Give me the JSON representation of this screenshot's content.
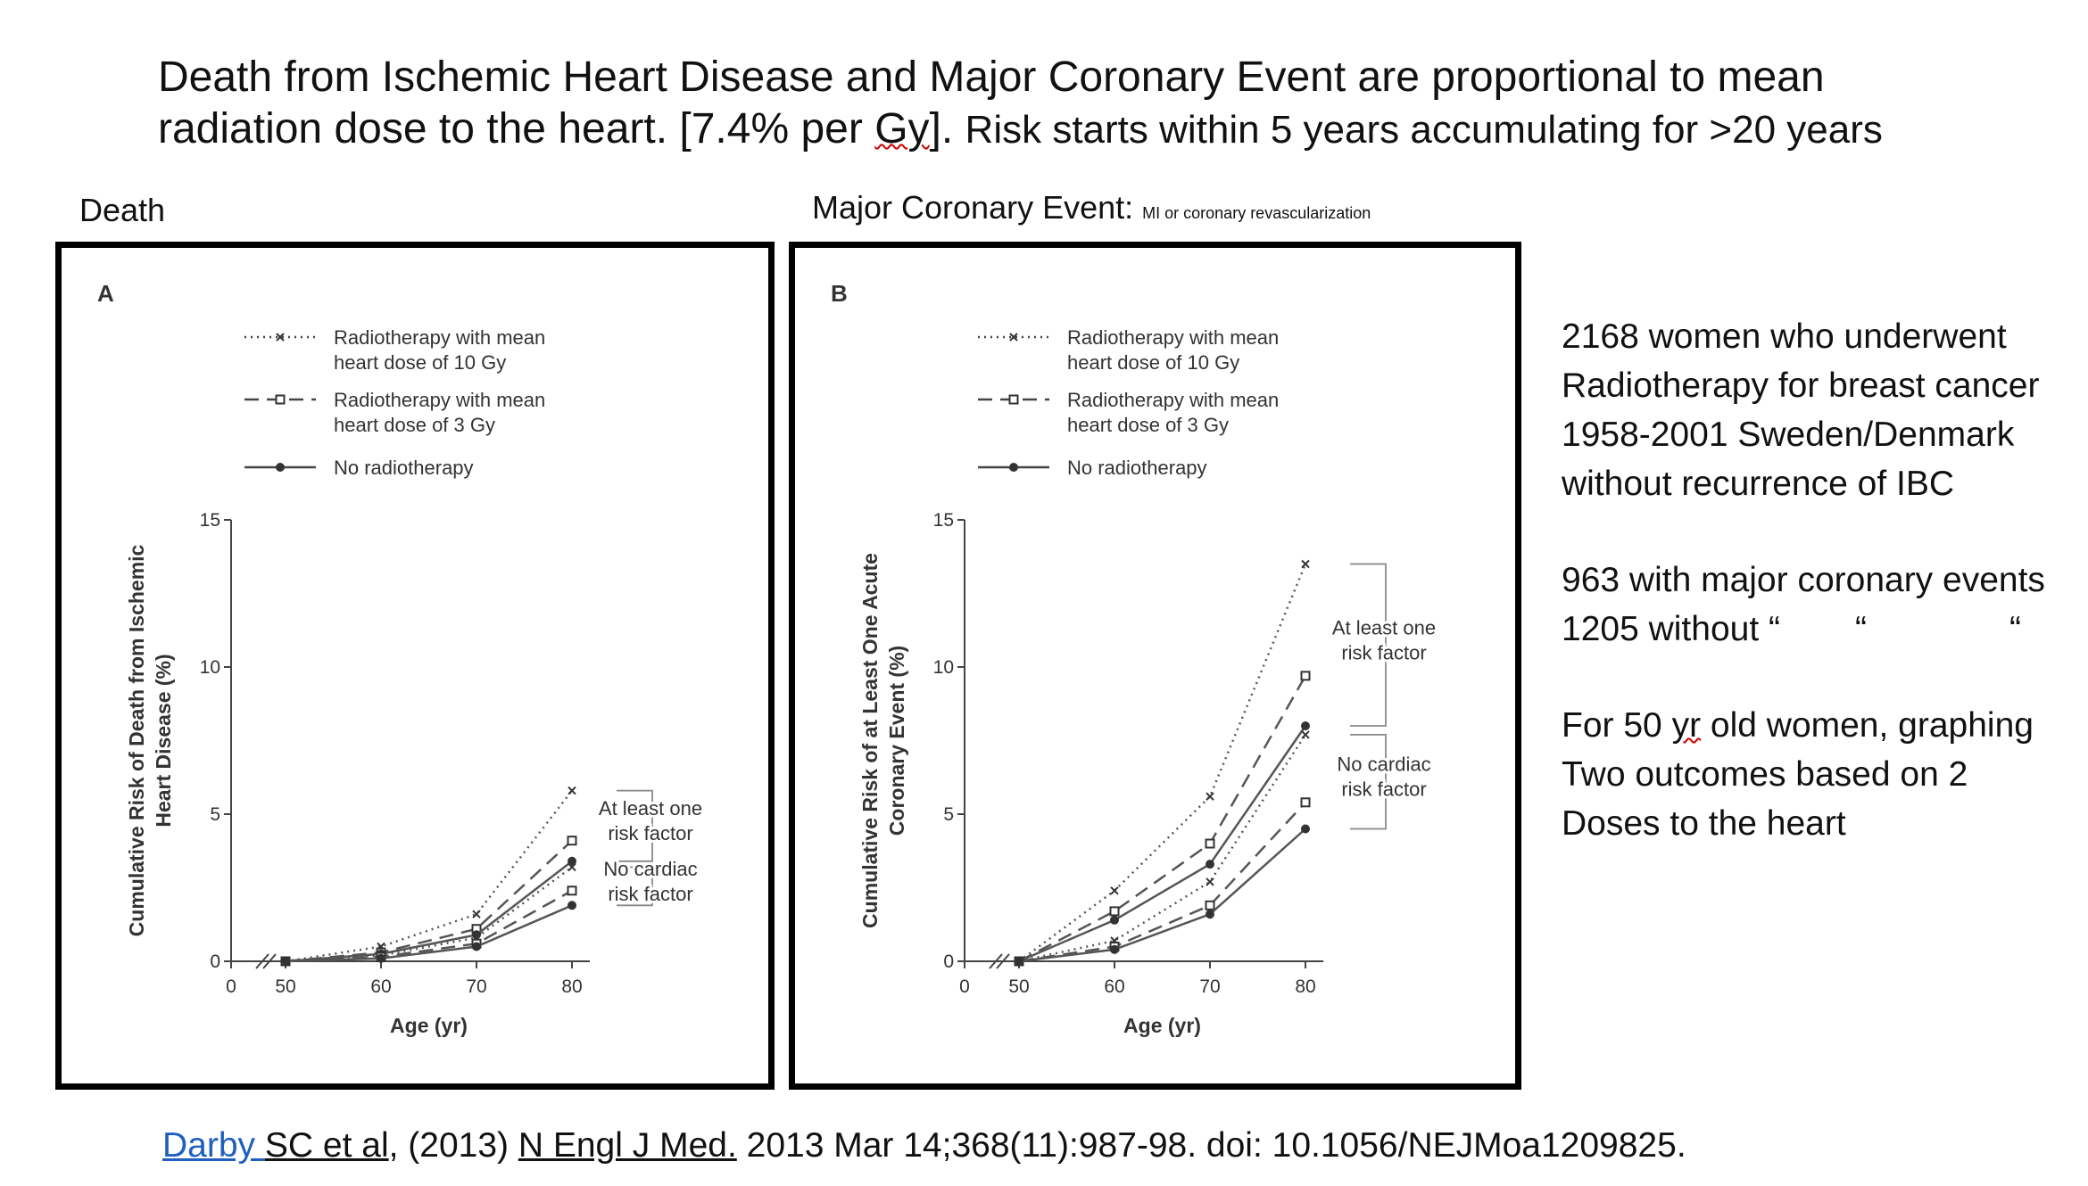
{
  "title": {
    "line1": "Death from Ischemic Heart Disease and Major Coronary Event are proportional to mean",
    "line2_a": "radiation dose to the heart. [7.4% per ",
    "line2_gy": "Gy",
    "line2_b": "]. ",
    "line2_c": "Risk starts within 5 years accumulating for  >20 years"
  },
  "labels": {
    "death": "Death",
    "major_main": "Major Coronary Event: ",
    "major_sub": "MI or coronary revascularization"
  },
  "side": {
    "p1": [
      "2168 women who underwent",
      "Radiotherapy for breast  cancer",
      "1958-2001 Sweden/Denmark",
      "without recurrence of IBC"
    ],
    "p2_l1": "963 with major coronary events",
    "p2_l2a": "1205 without “",
    "p2_l2b": "“",
    "p2_l2c": "“",
    "p3_a": "For 50 ",
    "p3_yr": "yr",
    "p3_b": " old women, graphing",
    "p3_l2": "Two outcomes based on 2",
    "p3_l3": "Doses to the heart"
  },
  "citation": {
    "darby": "Darby ",
    "sc": "SC et al",
    "mid": ",   (2013)  ",
    "journal": "N Engl J Med.",
    "rest": " 2013 Mar 14;368(11):987-98. doi: 10.1056/NEJMoa1209825."
  },
  "legend": [
    {
      "label": [
        "Radiotherapy with mean",
        "heart dose of 10 Gy"
      ],
      "style": "dotted",
      "marker": "x"
    },
    {
      "label": [
        "Radiotherapy with mean",
        "heart dose of 3 Gy"
      ],
      "style": "dashed",
      "marker": "square"
    },
    {
      "label": [
        "No radiotherapy"
      ],
      "style": "solid",
      "marker": "dot"
    }
  ],
  "chart_data": [
    {
      "type": "line",
      "panel": "A",
      "xlabel": "Age (yr)",
      "ylabel": [
        "Cumulative Risk of Death from Ischemic",
        "Heart Disease (%)"
      ],
      "x": [
        50,
        60,
        70,
        80
      ],
      "xticks": [
        0,
        50,
        60,
        70,
        80
      ],
      "yticks": [
        0,
        5,
        10,
        15
      ],
      "ylim": [
        0,
        15
      ],
      "group_labels": {
        "high": [
          "At least one",
          "risk factor"
        ],
        "low": [
          "No cardiac",
          "risk factor"
        ]
      },
      "series": [
        {
          "name": "Radiotherapy with mean heart dose of 10 Gy",
          "group": "high",
          "values": [
            0,
            0.5,
            1.6,
            5.8
          ]
        },
        {
          "name": "Radiotherapy with mean heart dose of 3 Gy",
          "group": "high",
          "values": [
            0,
            0.3,
            1.1,
            4.1
          ]
        },
        {
          "name": "No radiotherapy",
          "group": "high",
          "values": [
            0,
            0.25,
            0.9,
            3.4
          ]
        },
        {
          "name": "Radiotherapy with mean heart dose of 10 Gy",
          "group": "low",
          "values": [
            0,
            0.2,
            0.8,
            3.2
          ]
        },
        {
          "name": "Radiotherapy with mean heart dose of 3 Gy",
          "group": "low",
          "values": [
            0,
            0.15,
            0.6,
            2.4
          ]
        },
        {
          "name": "No radiotherapy",
          "group": "low",
          "values": [
            0,
            0.1,
            0.5,
            1.9
          ]
        }
      ]
    },
    {
      "type": "line",
      "panel": "B",
      "xlabel": "Age (yr)",
      "ylabel": [
        "Cumulative Risk of at Least One Acute",
        "Coronary Event (%)"
      ],
      "x": [
        50,
        60,
        70,
        80
      ],
      "xticks": [
        0,
        50,
        60,
        70,
        80
      ],
      "yticks": [
        0,
        5,
        10,
        15
      ],
      "ylim": [
        0,
        15
      ],
      "group_labels": {
        "high": [
          "At least one",
          "risk factor"
        ],
        "low": [
          "No cardiac",
          "risk factor"
        ]
      },
      "series": [
        {
          "name": "Radiotherapy with mean heart dose of 10 Gy",
          "group": "high",
          "values": [
            0,
            2.4,
            5.6,
            13.5
          ]
        },
        {
          "name": "Radiotherapy with mean heart dose of 3 Gy",
          "group": "high",
          "values": [
            0,
            1.7,
            4.0,
            9.7
          ]
        },
        {
          "name": "No radiotherapy",
          "group": "high",
          "values": [
            0,
            1.4,
            3.3,
            8.0
          ]
        },
        {
          "name": "Radiotherapy with mean heart dose of 10 Gy",
          "group": "low",
          "values": [
            0,
            0.7,
            2.7,
            7.7
          ]
        },
        {
          "name": "Radiotherapy with mean heart dose of 3 Gy",
          "group": "low",
          "values": [
            0,
            0.5,
            1.9,
            5.4
          ]
        },
        {
          "name": "No radiotherapy",
          "group": "low",
          "values": [
            0,
            0.4,
            1.6,
            4.5
          ]
        }
      ]
    }
  ]
}
